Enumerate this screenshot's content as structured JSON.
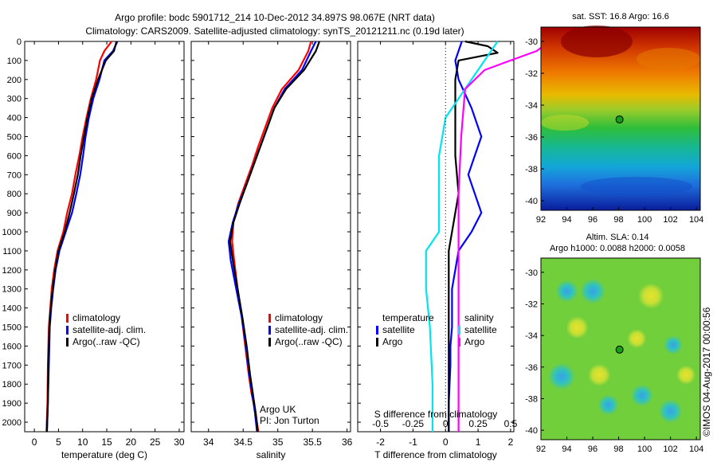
{
  "figure": {
    "title_line1": "Argo profile: bodc 5901712_214 10-Dec-2012 34.897S 98.067E (NRT data)",
    "title_line2": "Climatology: CARS2009. Satellite-adjusted climatology: synTS_20121211.nc (0.19d later)",
    "credit": "©IMOS 04-Aug-2017 00:00:56",
    "argo_group": "Argo UK",
    "pi": "PI: Jon Turton"
  },
  "colors": {
    "climatology": "#ff0000",
    "satellite": "#0000ff",
    "argo": "#000000",
    "salinity_satellite": "#00e5ee",
    "salinity_argo": "#ff00ff",
    "argo_marker_fill": "#1a9a1a"
  },
  "chart_data": [
    {
      "type": "line",
      "id": "temperature",
      "xlabel": "temperature (deg C)",
      "xlim": [
        -2,
        31
      ],
      "ylim": [
        2050,
        0
      ],
      "xticks": [
        0,
        5,
        10,
        15,
        20,
        25,
        30
      ],
      "yticks": [
        0,
        100,
        200,
        300,
        400,
        500,
        600,
        700,
        800,
        900,
        1000,
        1100,
        1200,
        1300,
        1400,
        1500,
        1600,
        1700,
        1800,
        1900,
        2000
      ],
      "legend": [
        "climatology",
        "satellite-adj. clim.",
        "Argo(..raw -QC)"
      ],
      "series": [
        {
          "name": "climatology",
          "color": "#ff0000",
          "x": [
            16,
            14.5,
            13.6,
            12.8,
            11.7,
            10.8,
            10,
            9.3,
            8.5,
            7.8,
            6.8,
            6,
            4.8,
            4.1,
            3.6,
            3.3,
            3,
            2.8,
            2.7,
            2.5
          ],
          "y": [
            0,
            50,
            100,
            200,
            300,
            400,
            500,
            600,
            700,
            800,
            900,
            1000,
            1100,
            1200,
            1300,
            1400,
            1500,
            1700,
            1900,
            2050
          ]
        },
        {
          "name": "satellite-adj. clim.",
          "color": "#0000ff",
          "x": [
            17.2,
            16.3,
            14.5,
            13.5,
            12.2,
            11.3,
            10.6,
            10.1,
            9.5,
            8.7,
            7.8,
            6.5,
            5.2,
            4.4,
            3.9,
            3.5,
            3.2,
            3,
            2.8,
            2.6
          ],
          "y": [
            0,
            50,
            100,
            200,
            300,
            400,
            500,
            600,
            700,
            800,
            900,
            1000,
            1100,
            1200,
            1300,
            1400,
            1500,
            1700,
            1900,
            2050
          ]
        },
        {
          "name": "Argo(..raw -QC)",
          "color": "#000000",
          "x": [
            17,
            16.5,
            14.8,
            13.2,
            11.9,
            11,
            10.3,
            9.6,
            9,
            8.2,
            7.3,
            6.3,
            5,
            4.3,
            3.8,
            3.4,
            3.1,
            2.9,
            2.8,
            2.6
          ],
          "y": [
            0,
            50,
            100,
            200,
            300,
            400,
            500,
            600,
            700,
            800,
            900,
            1000,
            1100,
            1200,
            1300,
            1400,
            1500,
            1700,
            1900,
            2050
          ]
        }
      ]
    },
    {
      "type": "line",
      "id": "salinity",
      "xlabel": "salinity",
      "xlim": [
        33.75,
        36.05
      ],
      "ylim": [
        2050,
        0
      ],
      "xticks": [
        34,
        34.5,
        35,
        35.5,
        36
      ],
      "legend": [
        "climatology",
        "satellite-adj. clim.",
        "Argo(..raw -QC)"
      ],
      "series": [
        {
          "name": "climatology",
          "color": "#ff0000",
          "x": [
            35.48,
            35.44,
            35.3,
            35.06,
            34.92,
            34.82,
            34.72,
            34.63,
            34.53,
            34.43,
            34.36,
            34.34,
            34.37,
            34.42,
            34.48,
            34.53,
            34.58,
            34.62,
            34.68,
            34.72
          ],
          "y": [
            0,
            50,
            150,
            250,
            350,
            450,
            550,
            650,
            750,
            850,
            950,
            1050,
            1150,
            1300,
            1450,
            1600,
            1750,
            1850,
            1950,
            2050
          ]
        },
        {
          "name": "satellite-adj. clim.",
          "color": "#0000ff",
          "x": [
            35.55,
            35.48,
            35.35,
            35.1,
            34.95,
            34.85,
            34.75,
            34.65,
            34.55,
            34.44,
            34.35,
            34.29,
            34.32,
            34.4,
            34.48,
            34.54,
            34.59,
            34.63,
            34.67,
            34.7
          ],
          "y": [
            0,
            50,
            150,
            250,
            350,
            450,
            550,
            650,
            750,
            850,
            950,
            1050,
            1150,
            1300,
            1450,
            1600,
            1750,
            1850,
            1950,
            2050
          ]
        },
        {
          "name": "Argo(..raw -QC)",
          "color": "#000000",
          "x": [
            35.6,
            35.55,
            35.38,
            35.12,
            34.95,
            34.85,
            34.75,
            34.65,
            34.55,
            34.45,
            34.36,
            34.31,
            34.35,
            34.42,
            34.49,
            34.55,
            34.6,
            34.64,
            34.68,
            34.71
          ],
          "y": [
            0,
            50,
            150,
            250,
            350,
            450,
            550,
            650,
            750,
            850,
            950,
            1050,
            1150,
            1300,
            1450,
            1600,
            1750,
            1850,
            1950,
            2050
          ]
        }
      ]
    },
    {
      "type": "line",
      "id": "difference",
      "xlabel": "T difference from climatology",
      "xlabel_top": "S difference from climatology",
      "xlim": [
        -2.7,
        2.1
      ],
      "ylim": [
        2050,
        0
      ],
      "xticks_T": [
        -2,
        -1,
        0,
        1,
        2
      ],
      "xticks_S": [
        -0.5,
        -0.25,
        0,
        0.25,
        0.5
      ],
      "legend_temperature_title": "temperature",
      "legend_salinity_title": "salinity",
      "series": [
        {
          "name": "satellite",
          "group": "temperature",
          "color": "#0000ff",
          "x": [
            0.5,
            0.4,
            0.3,
            0.4,
            0.8,
            1.1,
            0.9,
            0.7,
            0.9,
            1.1,
            0.8,
            0.4,
            0.3,
            0.2,
            0.2,
            0.2,
            0.15,
            0.15,
            0.1,
            0.1
          ],
          "y": [
            0,
            50,
            100,
            200,
            350,
            500,
            600,
            700,
            800,
            900,
            1000,
            1100,
            1200,
            1300,
            1400,
            1500,
            1600,
            1700,
            1900,
            2050
          ]
        },
        {
          "name": "Argo",
          "group": "temperature",
          "color": "#000000",
          "x": [
            0.6,
            1.3,
            1.6,
            0.4,
            0.3,
            0.3,
            0.3,
            0.4,
            0.3,
            0.2,
            0.1,
            0.1,
            0.1,
            0.1,
            0.1,
            0.1,
            0.1,
            0.1
          ],
          "y": [
            0,
            25,
            60,
            100,
            200,
            400,
            600,
            800,
            900,
            1000,
            1100,
            1200,
            1300,
            1400,
            1500,
            1700,
            1900,
            2050
          ]
        },
        {
          "name": "satellite",
          "group": "salinity",
          "color": "#00e5ee",
          "x": [
            0.4,
            0.3,
            0.2,
            0.1,
            0.0,
            -0.05,
            -0.05,
            -0.05,
            -0.05,
            -0.15,
            -0.15,
            -0.12,
            -0.1,
            -0.1
          ],
          "y": [
            0,
            100,
            200,
            300,
            400,
            600,
            800,
            900,
            1000,
            1100,
            1300,
            1500,
            1800,
            2050
          ]
        },
        {
          "name": "Argo",
          "group": "salinity",
          "color": "#ff00ff",
          "x": [
            0.8,
            0.7,
            0.5,
            0.3,
            0.15,
            0.12,
            0.1,
            0.1,
            0.1,
            0.1
          ],
          "y": [
            0,
            50,
            100,
            150,
            250,
            500,
            800,
            1200,
            1600,
            2050
          ]
        }
      ]
    },
    {
      "type": "heatmap",
      "id": "sst_map",
      "title": "sat. SST: 16.8 Argo: 16.6",
      "xlim": [
        92,
        104.3
      ],
      "ylim": [
        -40.6,
        -29.1
      ],
      "xticks": [
        92,
        94,
        96,
        98,
        100,
        102,
        104
      ],
      "yticks": [
        -30,
        -32,
        -34,
        -36,
        -38,
        -40
      ],
      "argo_position": [
        98.067,
        -34.897
      ],
      "colormap": "jet"
    },
    {
      "type": "heatmap",
      "id": "sla_map",
      "title_line1": "Altim. SLA: 0.14",
      "title_line2": "Argo h1000: 0.0088 h2000: 0.0058",
      "xlim": [
        92,
        104.3
      ],
      "ylim": [
        -40.6,
        -29.1
      ],
      "xticks": [
        92,
        94,
        96,
        98,
        100,
        102,
        104
      ],
      "yticks": [
        -30,
        -32,
        -34,
        -36,
        -38,
        -40
      ],
      "argo_position": [
        98.067,
        -34.897
      ],
      "colormap": "jet"
    }
  ]
}
